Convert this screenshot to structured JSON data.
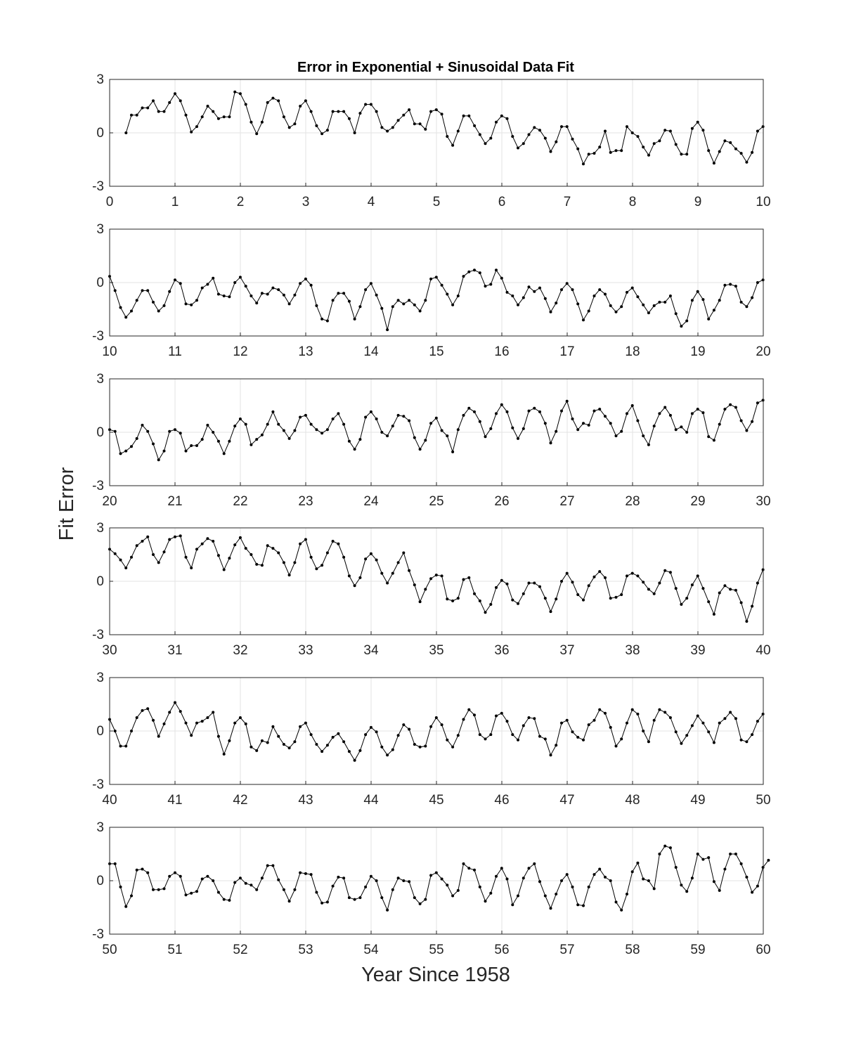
{
  "figure": {
    "title": "Error in Exponential + Sinusoidal Data Fit",
    "xlabel": "Year Since 1958",
    "ylabel": "Fit Error"
  },
  "chart_data": [
    {
      "type": "line",
      "xlim": [
        0,
        10
      ],
      "ylim": [
        -3,
        3
      ],
      "yticks": [
        "-3",
        "0",
        "3"
      ],
      "xticks": [
        "0",
        "1",
        "2",
        "3",
        "4",
        "5",
        "6",
        "7",
        "8",
        "9",
        "10"
      ],
      "grid": true,
      "marker": "dot",
      "x_start": 0.25,
      "x_step": 0.0833,
      "values": [
        0.0,
        1.0,
        1.0,
        1.4,
        1.4,
        1.8,
        1.2,
        1.2,
        1.7,
        2.2,
        1.8,
        1.0,
        0.05,
        0.35,
        0.9,
        1.5,
        1.2,
        0.8,
        0.9,
        0.9,
        2.3,
        2.2,
        1.6,
        0.6,
        -0.05,
        0.6,
        1.7,
        1.95,
        1.8,
        0.9,
        0.3,
        0.5,
        1.5,
        1.8,
        1.2,
        0.4,
        -0.05,
        0.15,
        1.2,
        1.2,
        1.2,
        0.8,
        0.0,
        1.1,
        1.6,
        1.6,
        1.2,
        0.3,
        0.1,
        0.3,
        0.7,
        1.0,
        1.3,
        0.5,
        0.5,
        0.2,
        1.2,
        1.3,
        1.05,
        -0.2,
        -0.7,
        0.1,
        0.95,
        0.95,
        0.4,
        -0.1,
        -0.6,
        -0.3,
        0.6,
        0.95,
        0.8,
        -0.2,
        -0.85,
        -0.6,
        -0.1,
        0.3,
        0.15,
        -0.3,
        -1.05,
        -0.5,
        0.35,
        0.35,
        -0.35,
        -0.9,
        -1.75,
        -1.2,
        -1.15,
        -0.8,
        0.1,
        -1.1,
        -1.0,
        -1.0,
        0.35,
        0.0,
        -0.2,
        -0.8,
        -1.25,
        -0.6,
        -0.45,
        0.15,
        0.1,
        -0.65,
        -1.2,
        -1.2,
        0.25,
        0.6,
        0.15,
        -1.0,
        -1.7,
        -1.05,
        -0.45,
        -0.55,
        -0.9,
        -1.15,
        -1.65,
        -1.1,
        0.1,
        0.35
      ]
    },
    {
      "type": "line",
      "xlim": [
        10,
        20
      ],
      "ylim": [
        -3,
        3
      ],
      "yticks": [
        "-3",
        "0",
        "3"
      ],
      "xticks": [
        "10",
        "11",
        "12",
        "13",
        "14",
        "15",
        "16",
        "17",
        "18",
        "19",
        "20"
      ],
      "grid": true,
      "marker": "dot",
      "x_start": 10.0,
      "x_step": 0.0833,
      "values": [
        0.35,
        -0.45,
        -1.4,
        -1.95,
        -1.6,
        -1.0,
        -0.45,
        -0.45,
        -1.1,
        -1.6,
        -1.3,
        -0.5,
        0.15,
        -0.05,
        -1.2,
        -1.25,
        -1.0,
        -0.3,
        -0.1,
        0.25,
        -0.65,
        -0.75,
        -0.8,
        0.0,
        0.3,
        -0.2,
        -0.75,
        -1.15,
        -0.6,
        -0.65,
        -0.3,
        -0.4,
        -0.7,
        -1.2,
        -0.7,
        -0.05,
        0.2,
        -0.15,
        -1.3,
        -2.05,
        -2.15,
        -1.0,
        -0.6,
        -0.6,
        -1.05,
        -2.05,
        -1.35,
        -0.4,
        -0.05,
        -0.7,
        -1.45,
        -2.65,
        -1.35,
        -1.0,
        -1.2,
        -1.0,
        -1.25,
        -1.6,
        -1.0,
        0.2,
        0.3,
        -0.15,
        -0.65,
        -1.25,
        -0.75,
        0.35,
        0.6,
        0.7,
        0.55,
        -0.2,
        -0.1,
        0.7,
        0.25,
        -0.55,
        -0.75,
        -1.25,
        -0.85,
        -0.25,
        -0.5,
        -0.3,
        -0.9,
        -1.65,
        -1.15,
        -0.4,
        -0.05,
        -0.4,
        -1.2,
        -2.1,
        -1.6,
        -0.75,
        -0.4,
        -0.65,
        -1.3,
        -1.65,
        -1.35,
        -0.55,
        -0.3,
        -0.8,
        -1.25,
        -1.7,
        -1.3,
        -1.1,
        -1.1,
        -0.75,
        -1.75,
        -2.45,
        -2.15,
        -1.0,
        -0.5,
        -0.95,
        -2.05,
        -1.55,
        -1.0,
        -0.15,
        -0.1,
        -0.2,
        -1.1,
        -1.35,
        -0.85,
        0.0,
        0.15
      ]
    },
    {
      "type": "line",
      "xlim": [
        20,
        30
      ],
      "ylim": [
        -3,
        3
      ],
      "yticks": [
        "-3",
        "0",
        "3"
      ],
      "xticks": [
        "20",
        "21",
        "22",
        "23",
        "24",
        "25",
        "26",
        "27",
        "28",
        "29",
        "30"
      ],
      "grid": true,
      "marker": "dot",
      "x_start": 20.0,
      "x_step": 0.0833,
      "values": [
        0.15,
        0.05,
        -1.2,
        -1.05,
        -0.8,
        -0.35,
        0.4,
        0.05,
        -0.65,
        -1.55,
        -1.05,
        0.05,
        0.15,
        -0.05,
        -1.05,
        -0.75,
        -0.75,
        -0.4,
        0.4,
        0.0,
        -0.5,
        -1.2,
        -0.5,
        0.35,
        0.75,
        0.45,
        -0.7,
        -0.4,
        -0.15,
        0.45,
        1.15,
        0.45,
        0.1,
        -0.35,
        0.1,
        0.85,
        0.95,
        0.45,
        0.15,
        -0.05,
        0.15,
        0.75,
        1.05,
        0.45,
        -0.5,
        -0.95,
        -0.4,
        0.85,
        1.15,
        0.75,
        0.0,
        -0.2,
        0.35,
        0.95,
        0.9,
        0.65,
        -0.3,
        -0.95,
        -0.45,
        0.5,
        0.8,
        0.1,
        -0.2,
        -1.1,
        0.15,
        0.95,
        1.35,
        1.15,
        0.6,
        -0.25,
        0.2,
        1.05,
        1.55,
        1.15,
        0.25,
        -0.35,
        0.2,
        1.2,
        1.35,
        1.15,
        0.5,
        -0.6,
        0.05,
        1.2,
        1.75,
        0.75,
        0.15,
        0.5,
        0.4,
        1.2,
        1.3,
        0.9,
        0.5,
        -0.2,
        0.05,
        1.05,
        1.5,
        0.65,
        -0.2,
        -0.7,
        0.35,
        1.05,
        1.4,
        0.95,
        0.15,
        0.3,
        0.0,
        1.05,
        1.3,
        1.1,
        -0.25,
        -0.45,
        0.45,
        1.3,
        1.55,
        1.4,
        0.65,
        0.1,
        0.6,
        1.65,
        1.8
      ]
    },
    {
      "type": "line",
      "xlim": [
        30,
        40
      ],
      "ylim": [
        -3,
        3
      ],
      "yticks": [
        "-3",
        "0",
        "3"
      ],
      "xticks": [
        "30",
        "31",
        "32",
        "33",
        "34",
        "35",
        "36",
        "37",
        "38",
        "39",
        "40"
      ],
      "grid": true,
      "marker": "dot",
      "x_start": 30.0,
      "x_step": 0.0833,
      "values": [
        1.8,
        1.55,
        1.2,
        0.75,
        1.35,
        2.0,
        2.25,
        2.5,
        1.5,
        1.05,
        1.65,
        2.35,
        2.5,
        2.55,
        1.35,
        0.75,
        1.8,
        2.1,
        2.4,
        2.25,
        1.45,
        0.65,
        1.3,
        2.05,
        2.45,
        1.85,
        1.5,
        0.95,
        0.9,
        2.0,
        1.85,
        1.6,
        1.05,
        0.35,
        1.05,
        2.1,
        2.35,
        1.35,
        0.7,
        0.9,
        1.6,
        2.25,
        2.1,
        1.35,
        0.3,
        -0.25,
        0.2,
        1.25,
        1.55,
        1.2,
        0.45,
        -0.1,
        0.45,
        1.05,
        1.6,
        0.6,
        -0.2,
        -1.15,
        -0.45,
        0.15,
        0.35,
        0.3,
        -1.0,
        -1.1,
        -0.95,
        0.1,
        0.2,
        -0.7,
        -1.1,
        -1.75,
        -1.3,
        -0.35,
        0.05,
        -0.15,
        -1.05,
        -1.25,
        -0.7,
        -0.1,
        -0.1,
        -0.3,
        -0.95,
        -1.7,
        -1.0,
        0.0,
        0.45,
        -0.05,
        -0.75,
        -1.05,
        -0.25,
        0.25,
        0.55,
        0.2,
        -0.95,
        -0.9,
        -0.75,
        0.3,
        0.45,
        0.3,
        -0.05,
        -0.45,
        -0.7,
        -0.1,
        0.6,
        0.5,
        -0.4,
        -1.3,
        -0.95,
        -0.2,
        0.3,
        -0.4,
        -1.15,
        -1.85,
        -0.65,
        -0.25,
        -0.45,
        -0.5,
        -1.2,
        -2.25,
        -1.4,
        -0.1,
        0.65
      ]
    },
    {
      "type": "line",
      "xlim": [
        40,
        50
      ],
      "ylim": [
        -3,
        3
      ],
      "yticks": [
        "-3",
        "0",
        "3"
      ],
      "xticks": [
        "40",
        "41",
        "42",
        "43",
        "44",
        "45",
        "46",
        "47",
        "48",
        "49",
        "50"
      ],
      "grid": true,
      "marker": "dot",
      "x_start": 40.0,
      "x_step": 0.0833,
      "values": [
        0.65,
        0.0,
        -0.85,
        -0.85,
        0.0,
        0.75,
        1.15,
        1.25,
        0.6,
        -0.3,
        0.4,
        1.05,
        1.6,
        1.1,
        0.45,
        -0.25,
        0.45,
        0.55,
        0.75,
        1.05,
        -0.3,
        -1.3,
        -0.55,
        0.45,
        0.75,
        0.4,
        -0.9,
        -1.1,
        -0.55,
        -0.65,
        0.25,
        -0.3,
        -0.75,
        -0.95,
        -0.6,
        0.25,
        0.45,
        -0.2,
        -0.75,
        -1.15,
        -0.8,
        -0.35,
        -0.15,
        -0.6,
        -1.15,
        -1.65,
        -1.1,
        -0.2,
        0.2,
        -0.05,
        -0.9,
        -1.35,
        -1.05,
        -0.25,
        0.35,
        0.1,
        -0.75,
        -0.9,
        -0.85,
        0.25,
        0.75,
        0.35,
        -0.5,
        -0.9,
        -0.25,
        0.65,
        1.2,
        0.9,
        -0.2,
        -0.45,
        -0.2,
        0.85,
        1.0,
        0.55,
        -0.2,
        -0.5,
        0.3,
        0.75,
        0.7,
        -0.3,
        -0.45,
        -1.35,
        -0.8,
        0.45,
        0.6,
        -0.05,
        -0.35,
        -0.5,
        0.35,
        0.6,
        1.2,
        1.0,
        0.2,
        -0.85,
        -0.45,
        0.45,
        1.2,
        0.95,
        0.0,
        -0.6,
        0.6,
        1.2,
        1.05,
        0.75,
        -0.05,
        -0.7,
        -0.25,
        0.3,
        0.85,
        0.45,
        -0.05,
        -0.65,
        0.45,
        0.7,
        1.05,
        0.7,
        -0.5,
        -0.6,
        -0.2,
        0.55,
        0.95
      ]
    },
    {
      "type": "line",
      "xlim": [
        50,
        60
      ],
      "ylim": [
        -3,
        3
      ],
      "yticks": [
        "-3",
        "0",
        "3"
      ],
      "xticks": [
        "50",
        "51",
        "52",
        "53",
        "54",
        "55",
        "56",
        "57",
        "58",
        "59",
        "60"
      ],
      "grid": true,
      "marker": "dot",
      "x_start": 50.0,
      "x_step": 0.0833,
      "values": [
        0.95,
        0.95,
        -0.35,
        -1.45,
        -0.85,
        0.6,
        0.65,
        0.45,
        -0.5,
        -0.5,
        -0.45,
        0.25,
        0.45,
        0.25,
        -0.8,
        -0.7,
        -0.6,
        0.1,
        0.25,
        0.0,
        -0.65,
        -1.05,
        -1.1,
        -0.1,
        0.15,
        -0.15,
        -0.25,
        -0.5,
        0.15,
        0.85,
        0.85,
        0.05,
        -0.5,
        -1.15,
        -0.5,
        0.45,
        0.4,
        0.35,
        -0.65,
        -1.25,
        -1.2,
        -0.3,
        0.2,
        0.15,
        -0.95,
        -1.05,
        -0.95,
        -0.35,
        0.25,
        0.0,
        -0.95,
        -1.65,
        -0.5,
        0.15,
        0.0,
        -0.05,
        -0.95,
        -1.3,
        -1.05,
        0.3,
        0.45,
        0.1,
        -0.25,
        -0.85,
        -0.55,
        0.95,
        0.7,
        0.6,
        -0.35,
        -1.15,
        -0.7,
        0.25,
        0.7,
        0.1,
        -1.35,
        -0.85,
        0.15,
        0.7,
        0.95,
        -0.05,
        -0.85,
        -1.55,
        -0.75,
        0.0,
        0.35,
        -0.35,
        -1.35,
        -1.4,
        -0.35,
        0.35,
        0.65,
        0.2,
        0.0,
        -1.2,
        -1.65,
        -0.75,
        0.5,
        1.0,
        0.1,
        0.0,
        -0.45,
        1.5,
        1.95,
        1.85,
        0.75,
        -0.25,
        -0.6,
        0.15,
        1.5,
        1.2,
        1.3,
        -0.05,
        -0.55,
        0.65,
        1.5,
        1.5,
        0.95,
        0.2,
        -0.65,
        -0.3,
        0.75,
        1.15
      ]
    }
  ]
}
